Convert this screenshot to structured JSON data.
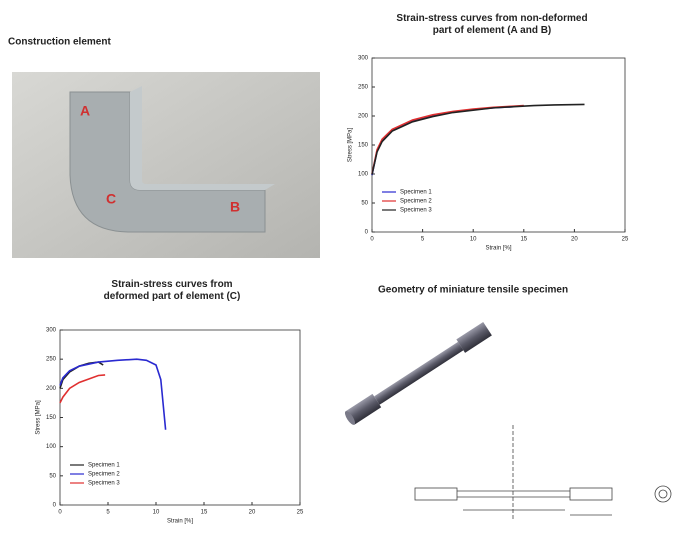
{
  "photo": {
    "title": "Construction element",
    "labels": [
      "A",
      "B",
      "C"
    ]
  },
  "geometry": {
    "title": "Geometry of miniature tensile specimen"
  },
  "chart_data": [
    {
      "type": "line",
      "title": "Strain-stress curves from non-deformed part of element (A and B)",
      "x_label": "Strain [%]",
      "y_label": "Stress [MPa]",
      "xlim": [
        0,
        25
      ],
      "xticks": [
        0,
        5,
        10,
        15,
        20,
        25
      ],
      "ylim": [
        0,
        300
      ],
      "yticks": [
        0,
        50,
        100,
        150,
        200,
        250,
        300
      ],
      "legend": "lower left",
      "series": [
        {
          "name": "Specimen 1",
          "color": "#2a2ad0",
          "x": [
            0,
            0.5,
            1,
            2,
            4,
            6,
            8,
            10,
            12,
            14
          ],
          "values": [
            98,
            140,
            158,
            175,
            192,
            201,
            207,
            211,
            214,
            216
          ]
        },
        {
          "name": "Specimen 2",
          "color": "#e03030",
          "x": [
            0,
            0.5,
            1,
            2,
            4,
            6,
            8,
            10,
            12,
            14,
            15
          ],
          "values": [
            100,
            142,
            160,
            177,
            193,
            202,
            208,
            212,
            215,
            217,
            218
          ]
        },
        {
          "name": "Specimen 3",
          "color": "#222222",
          "x": [
            0,
            0.5,
            1,
            2,
            4,
            6,
            8,
            10,
            12,
            14,
            16,
            18,
            21
          ],
          "values": [
            99,
            138,
            156,
            174,
            190,
            199,
            206,
            210,
            214,
            216,
            218,
            219,
            220
          ]
        }
      ]
    },
    {
      "type": "line",
      "title": "Strain-stress curves from deformed part of element (C)",
      "x_label": "Strain [%]",
      "y_label": "Stress [MPa]",
      "xlim": [
        0,
        25
      ],
      "xticks": [
        0,
        5,
        10,
        15,
        20,
        25
      ],
      "ylim": [
        0,
        300
      ],
      "yticks": [
        0,
        50,
        100,
        150,
        200,
        250,
        300
      ],
      "legend": "lower left",
      "series": [
        {
          "name": "Specimen 1",
          "color": "#222222",
          "x": [
            0,
            0.3,
            1,
            2,
            3,
            4,
            4.5
          ],
          "values": [
            200,
            215,
            228,
            238,
            243,
            245,
            240
          ]
        },
        {
          "name": "Specimen 2",
          "color": "#2a2ad0",
          "x": [
            0,
            0.3,
            1,
            2,
            4,
            6,
            8,
            9,
            10,
            10.5,
            11
          ],
          "values": [
            205,
            218,
            230,
            238,
            245,
            248,
            250,
            248,
            240,
            215,
            129
          ]
        },
        {
          "name": "Specimen 3",
          "color": "#e03030",
          "x": [
            0,
            0.3,
            1,
            2,
            3,
            4,
            4.7
          ],
          "values": [
            175,
            185,
            200,
            210,
            216,
            222,
            223
          ]
        }
      ]
    }
  ]
}
